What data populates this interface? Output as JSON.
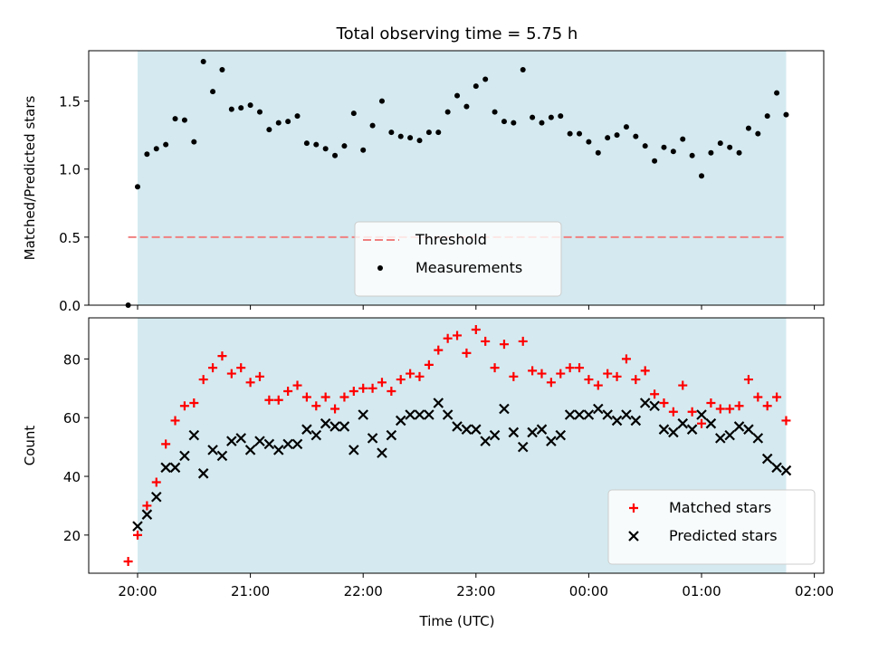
{
  "title": "Total observing time = 5.75 h",
  "xlabel": "Time (UTC)",
  "x_ticks": [
    "20:00",
    "21:00",
    "22:00",
    "23:00",
    "00:00",
    "01:00",
    "02:00"
  ],
  "chart_data": [
    {
      "type": "scatter",
      "ylabel": "Matched/Predicted stars",
      "ylim": [
        0,
        1.87
      ],
      "y_ticks": [
        0.0,
        0.5,
        1.0,
        1.5
      ],
      "y_tick_labels": [
        "0.0",
        "0.5",
        "1.0",
        "1.5"
      ],
      "xlim": [
        "19:34",
        "02:05"
      ],
      "observing_window": [
        "20:00",
        "01:45"
      ],
      "observing_window_color": "#d4eaf0",
      "legend_position": "lower-center",
      "threshold": {
        "name": "Threshold",
        "y": 0.5,
        "x_range": [
          "19:55",
          "01:45"
        ],
        "color": "#f08080",
        "style": "dashed"
      },
      "series": [
        {
          "name": "Measurements",
          "color": "#000000",
          "marker": "dot",
          "x": [
            "19:55",
            "20:00",
            "20:05",
            "20:10",
            "20:15",
            "20:20",
            "20:25",
            "20:30",
            "20:35",
            "20:40",
            "20:45",
            "20:50",
            "20:55",
            "21:00",
            "21:05",
            "21:10",
            "21:15",
            "21:20",
            "21:25",
            "21:30",
            "21:35",
            "21:40",
            "21:45",
            "21:50",
            "21:55",
            "22:00",
            "22:05",
            "22:10",
            "22:15",
            "22:20",
            "22:25",
            "22:30",
            "22:35",
            "22:40",
            "22:45",
            "22:50",
            "22:55",
            "23:00",
            "23:05",
            "23:10",
            "23:15",
            "23:20",
            "23:25",
            "23:30",
            "23:35",
            "23:40",
            "23:45",
            "23:50",
            "23:55",
            "00:00",
            "00:05",
            "00:10",
            "00:15",
            "00:20",
            "00:25",
            "00:30",
            "00:35",
            "00:40",
            "00:45",
            "00:50",
            "00:55",
            "01:00",
            "01:05",
            "01:10",
            "01:15",
            "01:20",
            "01:25",
            "01:30",
            "01:35",
            "01:40",
            "01:45"
          ],
          "y": [
            0.0,
            0.87,
            1.11,
            1.15,
            1.18,
            1.37,
            1.36,
            1.2,
            1.79,
            1.57,
            1.73,
            1.44,
            1.45,
            1.47,
            1.42,
            1.29,
            1.34,
            1.35,
            1.39,
            1.19,
            1.18,
            1.15,
            1.1,
            1.17,
            1.41,
            1.14,
            1.32,
            1.5,
            1.27,
            1.24,
            1.23,
            1.21,
            1.27,
            1.27,
            1.42,
            1.54,
            1.46,
            1.61,
            1.66,
            1.42,
            1.35,
            1.34,
            1.73,
            1.38,
            1.34,
            1.38,
            1.39,
            1.26,
            1.26,
            1.2,
            1.12,
            1.23,
            1.25,
            1.31,
            1.24,
            1.17,
            1.06,
            1.16,
            1.13,
            1.22,
            1.1,
            0.95,
            1.12,
            1.19,
            1.16,
            1.12,
            1.3,
            1.26,
            1.39,
            1.56,
            1.4
          ]
        }
      ]
    },
    {
      "type": "scatter",
      "ylabel": "Count",
      "ylim": [
        7,
        94
      ],
      "y_ticks": [
        20,
        40,
        60,
        80
      ],
      "y_tick_labels": [
        "20",
        "40",
        "60",
        "80"
      ],
      "xlim": [
        "19:34",
        "02:05"
      ],
      "observing_window": [
        "20:00",
        "01:45"
      ],
      "observing_window_color": "#d4eaf0",
      "legend_position": "lower-right",
      "series": [
        {
          "name": "Matched stars",
          "color": "#ff0000",
          "marker": "plus",
          "x": [
            "19:55",
            "20:00",
            "20:05",
            "20:10",
            "20:15",
            "20:20",
            "20:25",
            "20:30",
            "20:35",
            "20:40",
            "20:45",
            "20:50",
            "20:55",
            "21:00",
            "21:05",
            "21:10",
            "21:15",
            "21:20",
            "21:25",
            "21:30",
            "21:35",
            "21:40",
            "21:45",
            "21:50",
            "21:55",
            "22:00",
            "22:05",
            "22:10",
            "22:15",
            "22:20",
            "22:25",
            "22:30",
            "22:35",
            "22:40",
            "22:45",
            "22:50",
            "22:55",
            "23:00",
            "23:05",
            "23:10",
            "23:15",
            "23:20",
            "23:25",
            "23:30",
            "23:35",
            "23:40",
            "23:45",
            "23:50",
            "23:55",
            "00:00",
            "00:05",
            "00:10",
            "00:15",
            "00:20",
            "00:25",
            "00:30",
            "00:35",
            "00:40",
            "00:45",
            "00:50",
            "00:55",
            "01:00",
            "01:05",
            "01:10",
            "01:15",
            "01:20",
            "01:25",
            "01:30",
            "01:35",
            "01:40",
            "01:45"
          ],
          "y": [
            11,
            20,
            30,
            38,
            51,
            59,
            64,
            65,
            73,
            77,
            81,
            75,
            77,
            72,
            74,
            66,
            66,
            69,
            71,
            67,
            64,
            67,
            63,
            67,
            69,
            70,
            70,
            72,
            69,
            73,
            75,
            74,
            78,
            83,
            87,
            88,
            82,
            90,
            86,
            77,
            85,
            74,
            86,
            76,
            75,
            72,
            75,
            77,
            77,
            73,
            71,
            75,
            74,
            80,
            73,
            76,
            68,
            65,
            62,
            71,
            62,
            58,
            65,
            63,
            63,
            64,
            73,
            67,
            64,
            67,
            59
          ]
        },
        {
          "name": "Predicted stars",
          "color": "#000000",
          "marker": "x",
          "x": [
            "20:00",
            "20:05",
            "20:10",
            "20:15",
            "20:20",
            "20:25",
            "20:30",
            "20:35",
            "20:40",
            "20:45",
            "20:50",
            "20:55",
            "21:00",
            "21:05",
            "21:10",
            "21:15",
            "21:20",
            "21:25",
            "21:30",
            "21:35",
            "21:40",
            "21:45",
            "21:50",
            "21:55",
            "22:00",
            "22:05",
            "22:10",
            "22:15",
            "22:20",
            "22:25",
            "22:30",
            "22:35",
            "22:40",
            "22:45",
            "22:50",
            "22:55",
            "23:00",
            "23:05",
            "23:10",
            "23:15",
            "23:20",
            "23:25",
            "23:30",
            "23:35",
            "23:40",
            "23:45",
            "23:50",
            "23:55",
            "00:00",
            "00:05",
            "00:10",
            "00:15",
            "00:20",
            "00:25",
            "00:30",
            "00:35",
            "00:40",
            "00:45",
            "00:50",
            "00:55",
            "01:00",
            "01:05",
            "01:10",
            "01:15",
            "01:20",
            "01:25",
            "01:30",
            "01:35",
            "01:40",
            "01:45"
          ],
          "y": [
            23,
            27,
            33,
            43,
            43,
            47,
            54,
            41,
            49,
            47,
            52,
            53,
            49,
            52,
            51,
            49,
            51,
            51,
            56,
            54,
            58,
            57,
            57,
            49,
            61,
            53,
            48,
            54,
            59,
            61,
            61,
            61,
            65,
            61,
            57,
            56,
            56,
            52,
            54,
            63,
            55,
            50,
            55,
            56,
            52,
            54,
            61,
            61,
            61,
            63,
            61,
            59,
            61,
            59,
            65,
            64,
            56,
            55,
            58,
            56,
            61,
            58,
            53,
            54,
            57,
            56,
            53,
            46,
            43,
            42
          ]
        }
      ]
    }
  ]
}
